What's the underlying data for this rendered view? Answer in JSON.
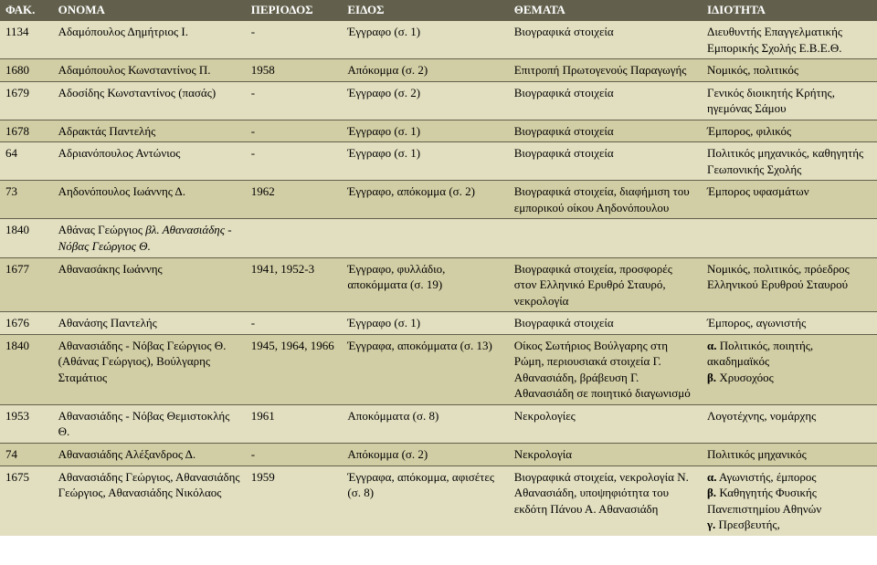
{
  "headers": {
    "fak": "ΦΑΚ.",
    "onoma": "ΟΝΟΜΑ",
    "periodos": "ΠΕΡΙΟΔΟΣ",
    "eidos": "ΕΙΔΟΣ",
    "themata": "ΘΕΜΑΤΑ",
    "idiotita": "ΙΔΙΟΤΗΤΑ"
  },
  "rows": [
    {
      "fak": "1134",
      "onoma": "Αδαμόπουλος Δημήτριος Ι.",
      "periodos": "-",
      "eidos": "Έγγραφο (σ. 1)",
      "themata": "Βιογραφικά στοιχεία",
      "idiotita": "Διευθυντής Επαγγελματικής Εμπορικής Σχολής Ε.Β.Ε.Θ."
    },
    {
      "fak": "1680",
      "onoma": "Αδαμόπουλος Κωνσταντίνος Π.",
      "periodos": "1958",
      "eidos": "Απόκομμα (σ. 2)",
      "themata": "Επιτροπή Πρωτογενούς Παραγωγής",
      "idiotita": "Νομικός, πολιτικός"
    },
    {
      "fak": "1679",
      "onoma": "Αδοσίδης Κωνσταντίνος (πασάς)",
      "periodos": "-",
      "eidos": "Έγγραφο (σ. 2)",
      "themata": "Βιογραφικά στοιχεία",
      "idiotita": "Γενικός διοικητής Κρήτης, ηγεμόνας Σάμου"
    },
    {
      "fak": "1678",
      "onoma": "Αδρακτάς Παντελής",
      "periodos": "-",
      "eidos": "Έγγραφο (σ. 1)",
      "themata": "Βιογραφικά στοιχεία",
      "idiotita": "Έμπορος, φιλικός"
    },
    {
      "fak": "64",
      "onoma": "Αδριανόπουλος Αντώνιος",
      "periodos": "-",
      "eidos": "Έγγραφο (σ. 1)",
      "themata": "Βιογραφικά στοιχεία",
      "idiotita": "Πολιτικός μηχανικός, καθηγητής Γεωπονικής Σχολής"
    },
    {
      "fak": "73",
      "onoma": "Αηδονόπουλος Ιωάννης Δ.",
      "periodos": "1962",
      "eidos": "Έγγραφο, απόκομμα (σ. 2)",
      "themata": "Βιογραφικά στοιχεία, διαφήμιση του εμπορικού οίκου Αηδονόπουλου",
      "idiotita": "Έμπορος υφασμάτων"
    },
    {
      "fak": "1840",
      "onoma_pre": "Αθάνας Γεώργιος ",
      "onoma_it": "βλ. Αθανασιάδης - Νόβας Γεώργιος Θ.",
      "periodos": "",
      "eidos": "",
      "themata": "",
      "idiotita": ""
    },
    {
      "fak": "1677",
      "onoma": "Αθανασάκης Ιωάννης",
      "periodos": "1941, 1952-3",
      "eidos": "Έγγραφο, φυλλάδιο, αποκόμματα (σ. 19)",
      "themata": "Βιογραφικά στοιχεία, προσφορές στον Ελληνικό Ερυθρό Σταυρό, νεκρολογία",
      "idiotita": "Νομικός, πολιτικός, πρόεδρος Ελληνικού Ερυθρού Σταυρού"
    },
    {
      "fak": "1676",
      "onoma": "Αθανάσης Παντελής",
      "periodos": "-",
      "eidos": "Έγγραφο (σ. 1)",
      "themata": "Βιογραφικά στοιχεία",
      "idiotita": "Έμπορος, αγωνιστής"
    },
    {
      "fak": "1840",
      "onoma": "Αθανασιάδης - Νόβας Γεώργιος Θ. (Αθάνας Γεώργιος), Βούλγαρης Σταμάτιος",
      "periodos": "1945, 1964, 1966",
      "eidos": "Έγγραφα, αποκόμματα (σ. 13)",
      "themata": "Οίκος Σωτήριος Βούλγαρης στη Ρώμη, περιουσιακά στοιχεία Γ. Αθανασιάδη, βράβευση Γ. Αθανασιάδη σε ποιητικό διαγωνισμό",
      "idiotita_a_bold": "α.",
      "idiotita_a": " Πολιτικός, ποιητής, ακαδημαϊκός",
      "idiotita_b_bold": "β.",
      "idiotita_b": " Χρυσοχόος"
    },
    {
      "fak": "1953",
      "onoma": "Αθανασιάδης - Νόβας Θεμιστοκλής Θ.",
      "periodos": "1961",
      "eidos": "Αποκόμματα (σ. 8)",
      "themata": "Νεκρολογίες",
      "idiotita": "Λογοτέχνης, νομάρχης"
    },
    {
      "fak": "74",
      "onoma": "Αθανασιάδης Αλέξανδρος Δ.",
      "periodos": "-",
      "eidos": "Απόκομμα (σ. 2)",
      "themata": "Νεκρολογία",
      "idiotita": "Πολιτικός μηχανικός"
    },
    {
      "fak": "1675",
      "onoma": "Αθανασιάδης Γεώργιος, Αθανασιάδης Γεώργιος, Αθανασιάδης Νικόλαος",
      "periodos": "1959",
      "eidos": "Έγγραφα, απόκομμα, αφισέτες (σ. 8)",
      "themata": "Βιογραφικά στοιχεία, νεκρολογία Ν. Αθανασιάδη, υποψηφιότητα του εκδότη Πάνου Α. Αθανασιάδη",
      "idiotita_a_bold": "α.",
      "idiotita_a": " Αγωνιστής, έμπορος",
      "idiotita_b_bold": "β.",
      "idiotita_b": " Καθηγητής Φυσικής Πανεπιστημίου Αθηνών",
      "idiotita_c_bold": "γ.",
      "idiotita_c": " Πρεσβευτής,"
    }
  ]
}
